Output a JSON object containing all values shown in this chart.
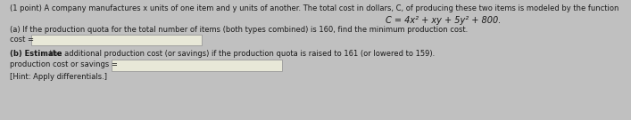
{
  "bg_color": "#c0c0c0",
  "content_bg": "#dcdcdc",
  "text_color": "#1a1a1a",
  "line1": "(1 point) A company manufactures x units of one item and y units of another. The total cost in dollars, C, of producing these two items is modeled by the function",
  "formula": "C = 4x² + xy + 5y² + 800.",
  "part_a_label": "(a) If the production quota for the total number of items (both types combined) is 160, find the minimum production cost.",
  "part_a_input_label": "cost =",
  "part_b_label_bold": "(b) Estimate",
  "part_b_label_rest": " the additional production cost (or savings) if the production quota is raised to 161 (or lowered to 159).",
  "part_b_input_label": "production cost or savings =",
  "hint": "[Hint: Apply differentials.]",
  "input_box_color": "#e8e8d8",
  "font_size_main": 6.0,
  "font_size_formula": 7.0
}
